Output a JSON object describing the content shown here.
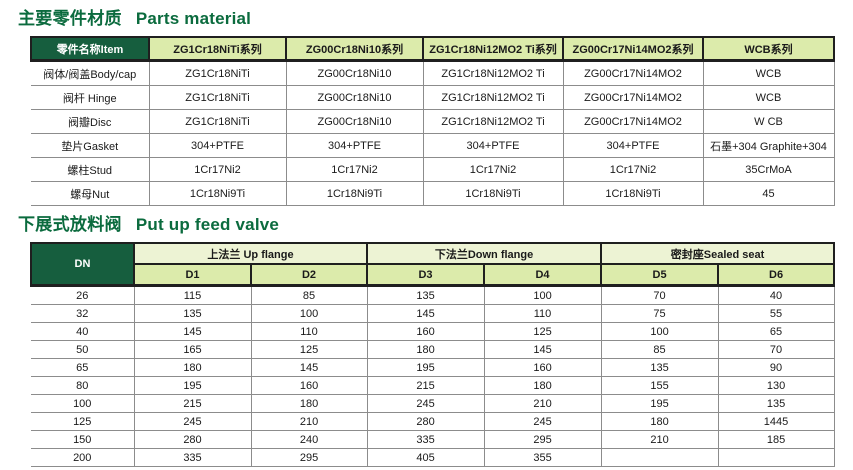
{
  "colors": {
    "dark_green": "#165e3e",
    "title_green": "#0b6b3e",
    "header_light": "#dcebab",
    "group_light": "#edf3d4",
    "border_dark": "#1f1f1f",
    "grid_gray": "#8c8c8c"
  },
  "section1": {
    "title_zh": "主要零件材质",
    "title_en": "Parts material",
    "table": {
      "header": [
        "零件名称Item",
        "ZG1Cr18NiTi系列",
        "ZG00Cr18Ni10系列",
        "ZG1Cr18Ni12MO2 Ti系列",
        "ZG00Cr17Ni14MO2系列",
        "WCB系列"
      ],
      "rows": [
        [
          "阀体/阀盖Body/cap",
          "ZG1Cr18NiTi",
          "ZG00Cr18Ni10",
          "ZG1Cr18Ni12MO2 Ti",
          "ZG00Cr17Ni14MO2",
          "WCB"
        ],
        [
          "阀杆 Hinge",
          "ZG1Cr18NiTi",
          "ZG00Cr18Ni10",
          "ZG1Cr18Ni12MO2 Ti",
          "ZG00Cr17Ni14MO2",
          "WCB"
        ],
        [
          "阀瓣Disc",
          "ZG1Cr18NiTi",
          "ZG00Cr18Ni10",
          "ZG1Cr18Ni12MO2 Ti",
          "ZG00Cr17Ni14MO2",
          "W CB"
        ],
        [
          "垫片Gasket",
          "304+PTFE",
          "304+PTFE",
          "304+PTFE",
          "304+PTFE",
          "石墨+304 Graphite+304"
        ],
        [
          "螺柱Stud",
          "1Cr17Ni2",
          "1Cr17Ni2",
          "1Cr17Ni2",
          "1Cr17Ni2",
          "35CrMoA"
        ],
        [
          "螺母Nut",
          "1Cr18Ni9Ti",
          "1Cr18Ni9Ti",
          "1Cr18Ni9Ti",
          "1Cr18Ni9Ti",
          "45"
        ]
      ]
    }
  },
  "section2": {
    "title_zh": "下展式放料阀",
    "title_en": "Put up feed valve",
    "table": {
      "dn_label": "DN",
      "groups": [
        {
          "label": "上法兰 Up flange",
          "cols": [
            "D1",
            "D2"
          ]
        },
        {
          "label": "下法兰Down flange",
          "cols": [
            "D3",
            "D4"
          ]
        },
        {
          "label": "密封座Sealed seat",
          "cols": [
            "D5",
            "D6"
          ]
        }
      ],
      "rows": [
        [
          "26",
          "115",
          "85",
          "135",
          "100",
          "70",
          "40"
        ],
        [
          "32",
          "135",
          "100",
          "145",
          "110",
          "75",
          "55"
        ],
        [
          "40",
          "145",
          "110",
          "160",
          "125",
          "100",
          "65"
        ],
        [
          "50",
          "165",
          "125",
          "180",
          "145",
          "85",
          "70"
        ],
        [
          "65",
          "180",
          "145",
          "195",
          "160",
          "135",
          "90"
        ],
        [
          "80",
          "195",
          "160",
          "215",
          "180",
          "155",
          "130"
        ],
        [
          "100",
          "215",
          "180",
          "245",
          "210",
          "195",
          "135"
        ],
        [
          "125",
          "245",
          "210",
          "280",
          "245",
          "180",
          "1445"
        ],
        [
          "150",
          "280",
          "240",
          "335",
          "295",
          "210",
          "185"
        ],
        [
          "200",
          "335",
          "295",
          "405",
          "355",
          "",
          ""
        ]
      ]
    }
  }
}
